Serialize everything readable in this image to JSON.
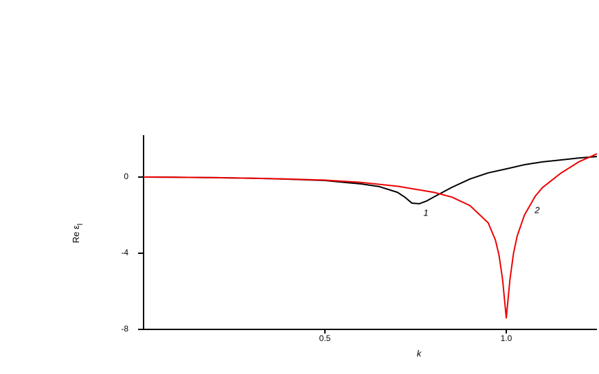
{
  "chart_data": {
    "type": "line",
    "xlabel": "k",
    "ylabel": "Re ε",
    "ylabel_subscript": "l",
    "xlim": [
      0,
      1.25
    ],
    "ylim": [
      -8,
      2.2
    ],
    "xticks": [
      0.5,
      {
        "value": 1.0,
        "label": "1.0"
      }
    ],
    "yticks": [
      0,
      -4,
      -8
    ],
    "series": [
      {
        "name": "1",
        "color": "#000000",
        "x": [
          0,
          0.1,
          0.2,
          0.3,
          0.4,
          0.5,
          0.6,
          0.65,
          0.7,
          0.72,
          0.74,
          0.76,
          0.78,
          0.8,
          0.85,
          0.9,
          0.95,
          1.0,
          1.05,
          1.1,
          1.15,
          1.2,
          1.25
        ],
        "values": [
          0,
          -0.01,
          -0.03,
          -0.06,
          -0.11,
          -0.18,
          -0.36,
          -0.5,
          -0.8,
          -1.05,
          -1.37,
          -1.4,
          -1.26,
          -1.05,
          -0.54,
          -0.1,
          0.22,
          0.43,
          0.65,
          0.8,
          0.9,
          1.0,
          1.08
        ]
      },
      {
        "name": "2",
        "color": "#ee0000",
        "x": [
          0,
          0.1,
          0.2,
          0.3,
          0.4,
          0.5,
          0.6,
          0.7,
          0.8,
          0.85,
          0.9,
          0.95,
          0.97,
          0.98,
          0.99,
          1.0,
          1.01,
          1.02,
          1.03,
          1.05,
          1.08,
          1.1,
          1.15,
          1.2,
          1.25
        ],
        "values": [
          0,
          -0.01,
          -0.03,
          -0.06,
          -0.1,
          -0.16,
          -0.28,
          -0.48,
          -0.8,
          -1.05,
          -1.5,
          -2.4,
          -3.3,
          -4.1,
          -5.4,
          -7.4,
          -5.4,
          -4.0,
          -3.1,
          -2.0,
          -1.0,
          -0.55,
          0.2,
          0.8,
          1.22
        ]
      }
    ]
  }
}
